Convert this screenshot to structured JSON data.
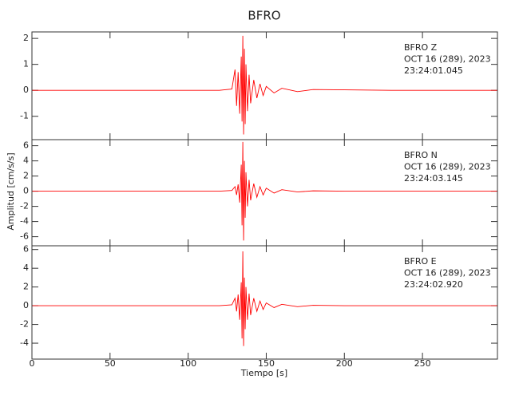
{
  "chart_data": {
    "type": "line",
    "title": "BFRO",
    "xlabel": "Tiempo [s]",
    "ylabel": "Amplitud [cm/s/s]",
    "xlim": [
      0,
      298
    ],
    "xticks": [
      0,
      50,
      100,
      150,
      200,
      250
    ],
    "color": "#ff0000",
    "x": [
      0,
      20,
      40,
      60,
      80,
      100,
      120,
      128,
      130,
      131,
      132,
      133,
      134,
      134.5,
      135,
      135.5,
      136,
      136.5,
      137,
      138,
      139,
      140,
      142,
      144,
      146,
      148,
      150,
      155,
      160,
      170,
      180,
      200,
      230,
      260,
      298
    ],
    "panels": [
      {
        "annotations": [
          "BFRO   Z",
          "OCT 16 (289), 2023",
          "23:24:01.045"
        ],
        "ylim": [
          -1.9,
          2.25
        ],
        "yticks": [
          -1,
          0,
          1,
          2
        ],
        "values": [
          0,
          0,
          0,
          0,
          0,
          0,
          0,
          0.05,
          0.8,
          -0.6,
          0.7,
          -0.9,
          1.3,
          -1.2,
          2.1,
          -1.7,
          1.6,
          -1.3,
          1.0,
          -0.8,
          0.6,
          -0.5,
          0.4,
          -0.3,
          0.25,
          -0.2,
          0.15,
          -0.1,
          0.08,
          -0.05,
          0.03,
          0.02,
          0,
          0,
          0
        ]
      },
      {
        "annotations": [
          "BFRO   N",
          "OCT 16 (289), 2023",
          "23:24:03.145"
        ],
        "ylim": [
          -7.2,
          6.8
        ],
        "yticks": [
          -6,
          -4,
          -2,
          0,
          2,
          4,
          6
        ],
        "values": [
          0,
          0,
          0,
          0,
          0,
          0,
          0,
          0.1,
          0.6,
          -0.5,
          0.9,
          -1.5,
          3.5,
          -4.5,
          6.5,
          -6.5,
          4,
          -3.5,
          2.5,
          -2,
          1.5,
          -1.2,
          1,
          -0.8,
          0.6,
          -0.5,
          0.4,
          -0.25,
          0.2,
          -0.1,
          0.05,
          0,
          0,
          0,
          0
        ]
      },
      {
        "annotations": [
          "BFRO   E",
          "OCT 16 (289), 2023",
          "23:24:02.920"
        ],
        "ylim": [
          -5.7,
          6.4
        ],
        "yticks": [
          -4,
          -2,
          0,
          2,
          4,
          6
        ],
        "values": [
          0,
          0,
          0,
          0,
          0,
          0,
          0,
          0.1,
          0.8,
          -0.6,
          1.2,
          -1.5,
          2.5,
          -3.5,
          5.8,
          -4.3,
          3,
          -2.5,
          2,
          -1.5,
          1.3,
          -1,
          0.8,
          -0.6,
          0.5,
          -0.4,
          0.3,
          -0.2,
          0.15,
          -0.1,
          0.05,
          0,
          0,
          0,
          0
        ]
      }
    ]
  }
}
